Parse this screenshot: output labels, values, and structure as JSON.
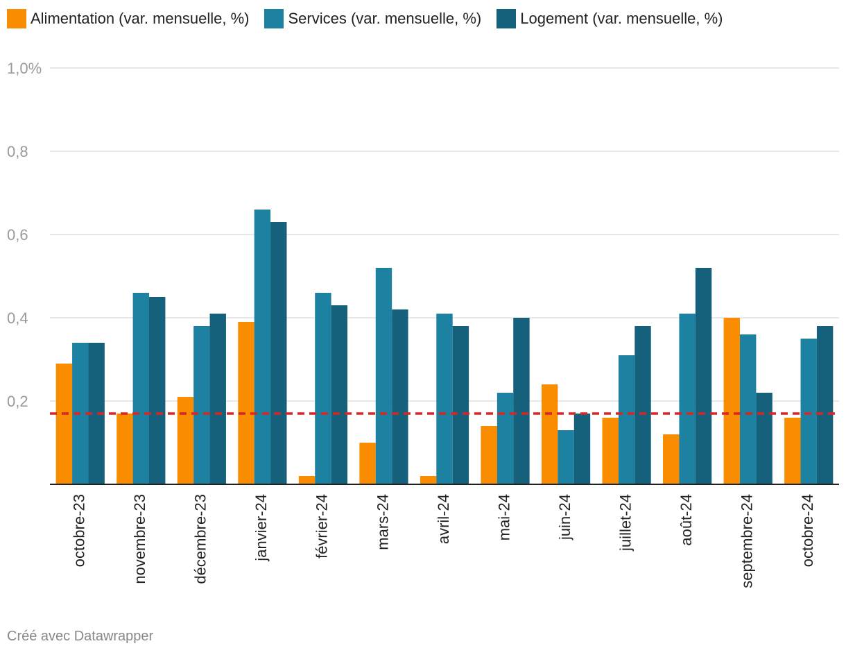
{
  "chart_data": {
    "type": "bar",
    "categories": [
      "octobre-23",
      "novembre-23",
      "décembre-23",
      "janvier-24",
      "février-24",
      "mars-24",
      "avril-24",
      "mai-24",
      "juin-24",
      "juillet-24",
      "août-24",
      "septembre-24",
      "octobre-24"
    ],
    "series": [
      {
        "name": "Alimentation (var. mensuelle, %)",
        "color": "#fa8c00",
        "values": [
          0.29,
          0.17,
          0.21,
          0.39,
          0.02,
          0.1,
          0.02,
          0.14,
          0.24,
          0.16,
          0.12,
          0.4,
          0.16
        ]
      },
      {
        "name": "Services (var. mensuelle, %)",
        "color": "#1d81a2",
        "values": [
          0.34,
          0.46,
          0.38,
          0.66,
          0.46,
          0.52,
          0.41,
          0.22,
          0.13,
          0.31,
          0.41,
          0.36,
          0.35
        ]
      },
      {
        "name": "Logement (var. mensuelle, %)",
        "color": "#15607a",
        "values": [
          0.34,
          0.45,
          0.41,
          0.63,
          0.43,
          0.42,
          0.38,
          0.4,
          0.17,
          0.38,
          0.52,
          0.22,
          0.38
        ]
      }
    ],
    "ylim": [
      0,
      1.0
    ],
    "yticks": [
      0.2,
      0.4,
      0.6,
      0.8,
      1.0
    ],
    "ytick_labels": [
      "0,2",
      "0,4",
      "0,6",
      "0,8",
      "1,0%"
    ],
    "reference_line": {
      "value": 0.17,
      "color": "#d62728"
    },
    "title": "",
    "xlabel": "",
    "ylabel": ""
  },
  "footer": {
    "credit": "Créé avec Datawrapper"
  }
}
